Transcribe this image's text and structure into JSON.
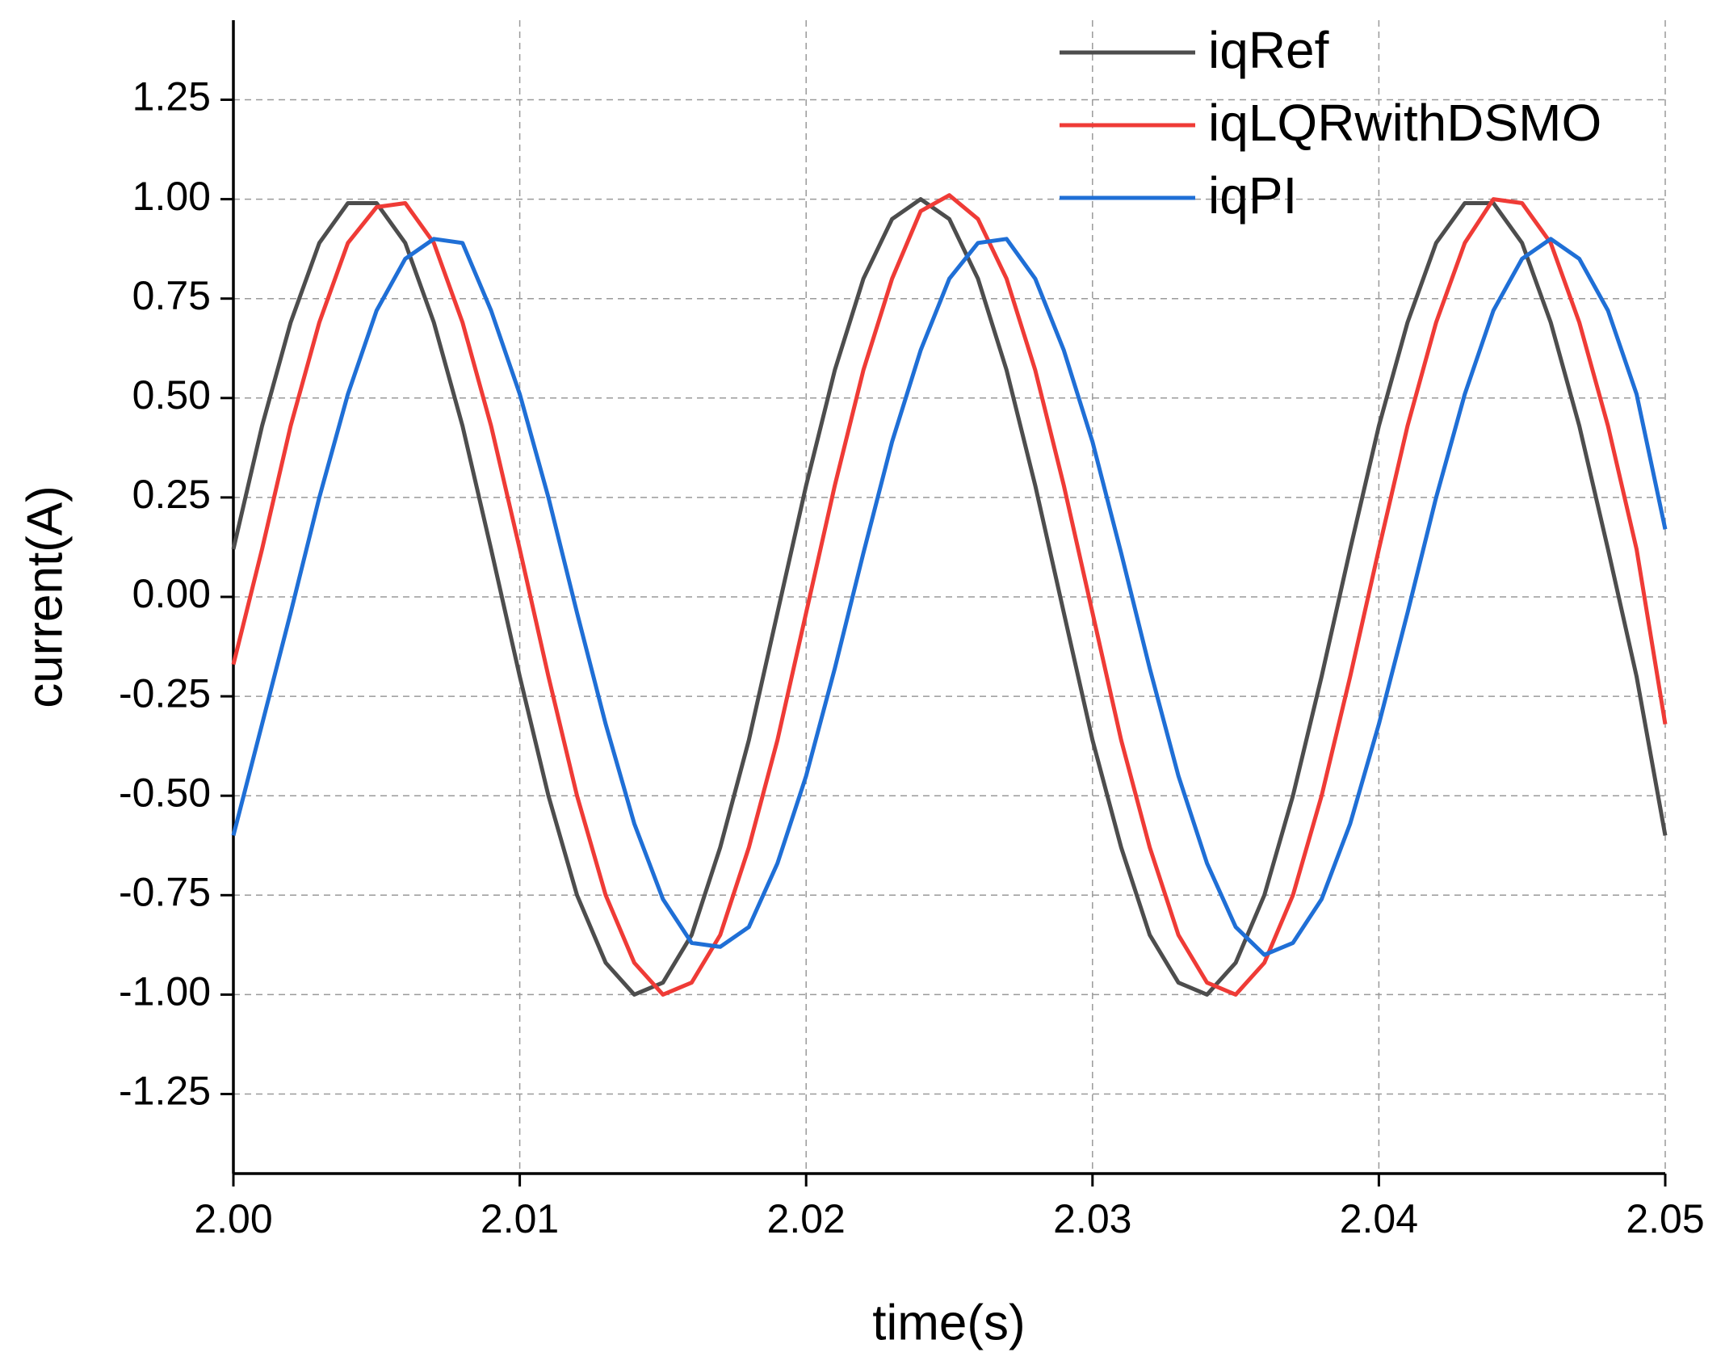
{
  "chart_data": {
    "type": "line",
    "xlabel": "time(s)",
    "ylabel": "current(A)",
    "x": [
      2.0,
      2.001,
      2.002,
      2.003,
      2.004,
      2.005,
      2.006,
      2.007,
      2.008,
      2.009,
      2.01,
      2.011,
      2.012,
      2.013,
      2.014,
      2.015,
      2.016,
      2.017,
      2.018,
      2.019,
      2.02,
      2.021,
      2.022,
      2.023,
      2.024,
      2.025,
      2.026,
      2.027,
      2.028,
      2.029,
      2.03,
      2.031,
      2.032,
      2.033,
      2.034,
      2.035,
      2.036,
      2.037,
      2.038,
      2.039,
      2.04,
      2.041,
      2.042,
      2.043,
      2.044,
      2.045,
      2.046,
      2.047,
      2.048,
      2.049,
      2.05
    ],
    "series": [
      {
        "name": "iqRef",
        "color": "#4d4d4d",
        "values": [
          0.12,
          0.43,
          0.69,
          0.89,
          0.99,
          0.99,
          0.89,
          0.69,
          0.43,
          0.12,
          -0.2,
          -0.5,
          -0.75,
          -0.92,
          -1.0,
          -0.97,
          -0.85,
          -0.63,
          -0.36,
          -0.04,
          0.28,
          0.57,
          0.8,
          0.95,
          1.0,
          0.95,
          0.8,
          0.57,
          0.28,
          -0.04,
          -0.36,
          -0.63,
          -0.85,
          -0.97,
          -1.0,
          -0.92,
          -0.75,
          -0.5,
          -0.2,
          0.12,
          0.43,
          0.69,
          0.89,
          0.99,
          0.99,
          0.89,
          0.69,
          0.43,
          0.12,
          -0.2,
          -0.6
        ]
      },
      {
        "name": "iqLQRwithDSMO",
        "color": "#ef3b36",
        "values": [
          -0.17,
          0.12,
          0.43,
          0.69,
          0.89,
          0.98,
          0.99,
          0.89,
          0.69,
          0.43,
          0.12,
          -0.2,
          -0.5,
          -0.75,
          -0.92,
          -1.0,
          -0.97,
          -0.85,
          -0.63,
          -0.36,
          -0.04,
          0.28,
          0.57,
          0.8,
          0.97,
          1.01,
          0.95,
          0.8,
          0.57,
          0.28,
          -0.04,
          -0.36,
          -0.63,
          -0.85,
          -0.97,
          -1.0,
          -0.92,
          -0.75,
          -0.5,
          -0.2,
          0.12,
          0.43,
          0.69,
          0.89,
          1.0,
          0.99,
          0.89,
          0.69,
          0.43,
          0.12,
          -0.32
        ]
      },
      {
        "name": "iqPI",
        "color": "#1f6fd6",
        "values": [
          -0.6,
          -0.32,
          -0.04,
          0.25,
          0.51,
          0.72,
          0.85,
          0.9,
          0.89,
          0.72,
          0.51,
          0.25,
          -0.04,
          -0.32,
          -0.57,
          -0.76,
          -0.87,
          -0.88,
          -0.83,
          -0.67,
          -0.45,
          -0.18,
          0.11,
          0.39,
          0.62,
          0.8,
          0.89,
          0.9,
          0.8,
          0.62,
          0.39,
          0.11,
          -0.18,
          -0.45,
          -0.67,
          -0.83,
          -0.9,
          -0.87,
          -0.76,
          -0.57,
          -0.32,
          -0.04,
          0.25,
          0.51,
          0.72,
          0.85,
          0.9,
          0.85,
          0.72,
          0.51,
          0.17
        ]
      }
    ],
    "xlim": [
      2.0,
      2.05
    ],
    "xticks": [
      {
        "value": 2.0,
        "label": "2.00"
      },
      2.01,
      2.02,
      2.03,
      2.04,
      2.05
    ],
    "ylim": [
      -1.45,
      1.45
    ],
    "yticks": [
      -1.25,
      {
        "value": -1.0,
        "label": "-1.00"
      },
      -0.75,
      {
        "value": -0.5,
        "label": "-0.50"
      },
      -0.25,
      {
        "value": 0,
        "label": "0.00"
      },
      0.25,
      {
        "value": 0.5,
        "label": "0.50"
      },
      0.75,
      {
        "value": 1.0,
        "label": "1.00"
      },
      1.25
    ],
    "grid": true,
    "legend": "upper right"
  }
}
